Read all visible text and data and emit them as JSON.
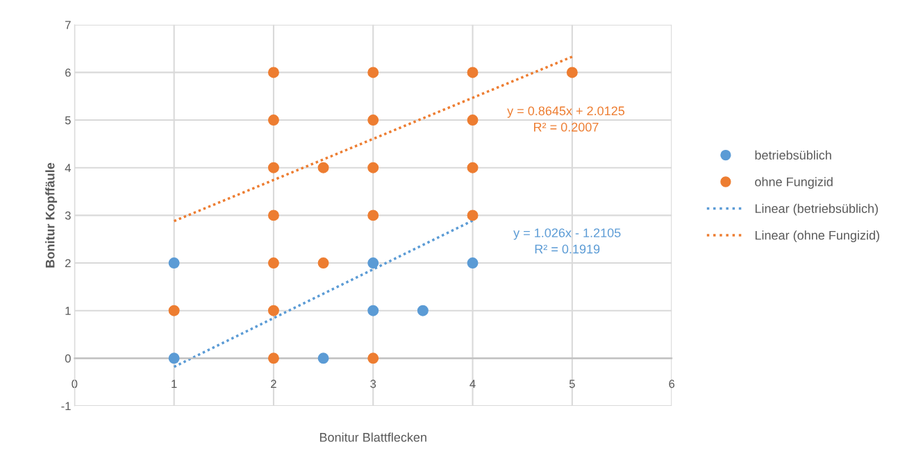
{
  "chart_data": {
    "type": "scatter",
    "xlabel": "Bonitur Blattflecken",
    "ylabel": "Bonitur Kopffäule",
    "xlim": [
      0,
      6
    ],
    "xticks": [
      0,
      1,
      2,
      3,
      4,
      5,
      6
    ],
    "ylim": [
      -1,
      7
    ],
    "yticks": [
      -1,
      0,
      1,
      2,
      3,
      4,
      5,
      6,
      7
    ],
    "grid": true,
    "legend": "right",
    "marker": "circle",
    "series": [
      {
        "name": "betriebsüblich",
        "color": "#5b9bd5",
        "x": [
          1,
          1,
          2.5,
          3,
          3,
          3.5,
          4
        ],
        "values": [
          2,
          0,
          0,
          2,
          1,
          1,
          2
        ]
      },
      {
        "name": "ohne Fungizid",
        "color": "#ed7d31",
        "x": [
          1,
          2,
          2,
          2,
          2,
          2,
          2,
          2,
          2.5,
          2.5,
          3,
          3,
          3,
          3,
          3,
          4,
          4,
          4,
          4,
          5
        ],
        "values": [
          1,
          0,
          1,
          2,
          3,
          4,
          5,
          6,
          4,
          2,
          0,
          3,
          4,
          5,
          6,
          3,
          4,
          5,
          6,
          6
        ]
      },
      {
        "name": "Linear (betriebsüblich)",
        "type": "line",
        "line_style": "dotted",
        "marker": "none",
        "color": "#5b9bd5",
        "x": [
          1,
          4
        ],
        "values": [
          -0.18,
          2.89
        ]
      },
      {
        "name": "Linear (ohne Fungizid)",
        "type": "line",
        "line_style": "dotted",
        "marker": "none",
        "color": "#ed7d31",
        "x": [
          1,
          5
        ],
        "values": [
          2.88,
          6.33
        ]
      }
    ],
    "annotations": [
      "y = 0.8645x + 2.0125\nR² = 0.2007",
      "y = 1.026x - 1.2105\nR² = 0.1919"
    ]
  }
}
